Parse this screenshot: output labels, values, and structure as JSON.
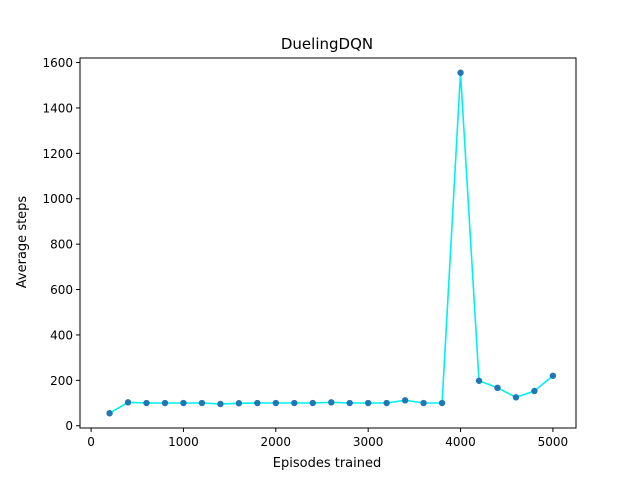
{
  "chart_data": {
    "type": "line",
    "title": "DuelingDQN",
    "xlabel": "Episodes trained",
    "ylabel": "Average steps",
    "xlim": [
      -120,
      5250
    ],
    "ylim": [
      -10,
      1620
    ],
    "xticks": [
      0,
      1000,
      2000,
      3000,
      4000,
      5000
    ],
    "yticks": [
      0,
      200,
      400,
      600,
      800,
      1000,
      1200,
      1400,
      1600
    ],
    "grid": false,
    "line_color": "#00f0f0",
    "marker_color": "#1f77b4",
    "series": [
      {
        "x": [
          200,
          400,
          600,
          800,
          1000,
          1200,
          1400,
          1600,
          1800,
          2000,
          2200,
          2400,
          2600,
          2800,
          3000,
          3200,
          3400,
          3600,
          3800,
          4000,
          4200,
          4400,
          4600,
          4800,
          5000
        ],
        "y": [
          55,
          103,
          100,
          100,
          100,
          100,
          96,
          99,
          100,
          100,
          100,
          100,
          103,
          100,
          100,
          100,
          112,
          100,
          100,
          1555,
          198,
          167,
          125,
          153,
          220
        ]
      }
    ]
  }
}
